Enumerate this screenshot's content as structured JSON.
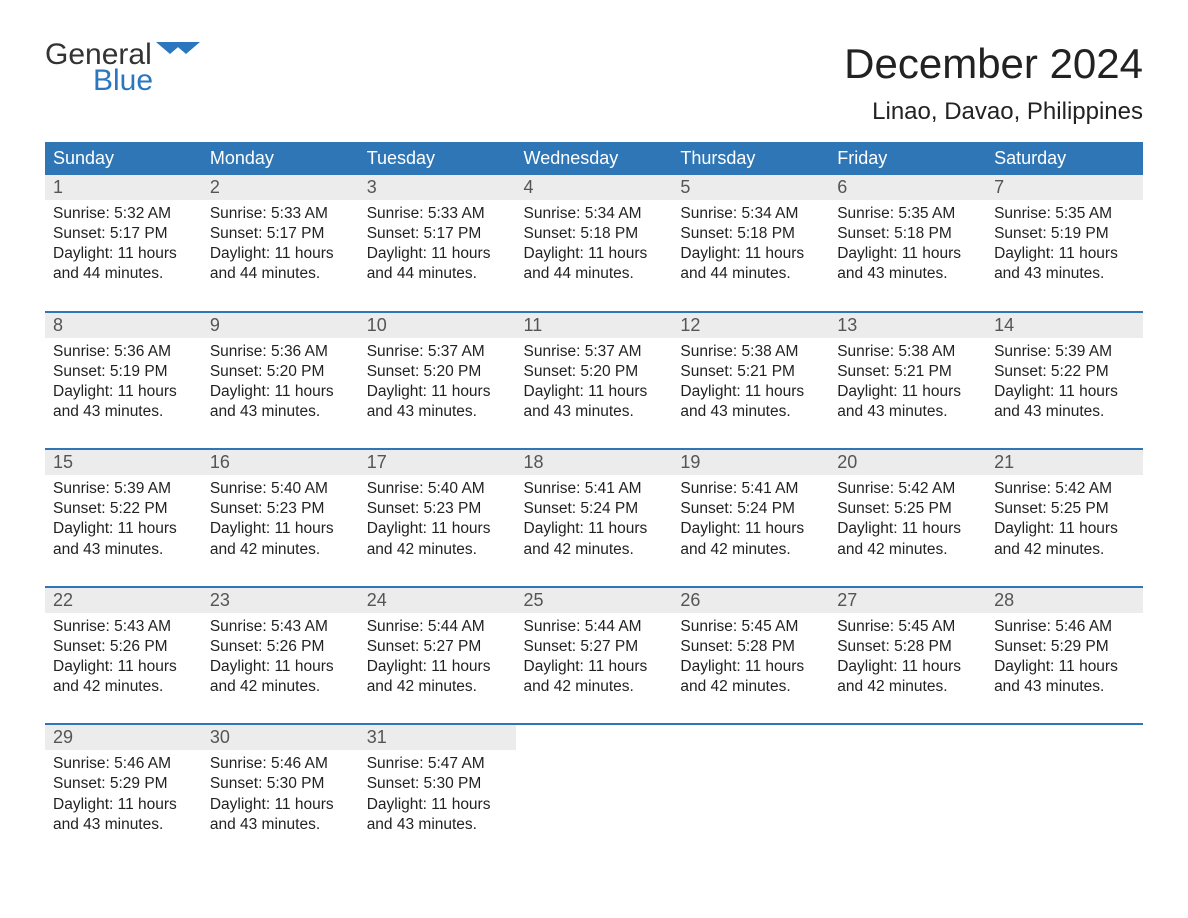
{
  "logo": {
    "word1": "General",
    "word2": "Blue",
    "flag_color": "#2a77bf"
  },
  "title": "December 2024",
  "location": "Linao, Davao, Philippines",
  "colors": {
    "header_bg": "#2f76b6",
    "header_text": "#ffffff",
    "row_border": "#2f76b6",
    "daynum_bg": "#ececec",
    "daynum_text": "#555555",
    "body_text": "#222222",
    "page_bg": "#ffffff"
  },
  "typography": {
    "title_fontsize": 42,
    "location_fontsize": 24,
    "header_fontsize": 18,
    "daynum_fontsize": 18,
    "cell_fontsize": 15.5
  },
  "layout": {
    "columns": 7,
    "rows": 5
  },
  "weekdays": [
    "Sunday",
    "Monday",
    "Tuesday",
    "Wednesday",
    "Thursday",
    "Friday",
    "Saturday"
  ],
  "days": [
    {
      "n": 1,
      "sunrise": "5:32 AM",
      "sunset": "5:17 PM",
      "daylight": "11 hours and 44 minutes."
    },
    {
      "n": 2,
      "sunrise": "5:33 AM",
      "sunset": "5:17 PM",
      "daylight": "11 hours and 44 minutes."
    },
    {
      "n": 3,
      "sunrise": "5:33 AM",
      "sunset": "5:17 PM",
      "daylight": "11 hours and 44 minutes."
    },
    {
      "n": 4,
      "sunrise": "5:34 AM",
      "sunset": "5:18 PM",
      "daylight": "11 hours and 44 minutes."
    },
    {
      "n": 5,
      "sunrise": "5:34 AM",
      "sunset": "5:18 PM",
      "daylight": "11 hours and 44 minutes."
    },
    {
      "n": 6,
      "sunrise": "5:35 AM",
      "sunset": "5:18 PM",
      "daylight": "11 hours and 43 minutes."
    },
    {
      "n": 7,
      "sunrise": "5:35 AM",
      "sunset": "5:19 PM",
      "daylight": "11 hours and 43 minutes."
    },
    {
      "n": 8,
      "sunrise": "5:36 AM",
      "sunset": "5:19 PM",
      "daylight": "11 hours and 43 minutes."
    },
    {
      "n": 9,
      "sunrise": "5:36 AM",
      "sunset": "5:20 PM",
      "daylight": "11 hours and 43 minutes."
    },
    {
      "n": 10,
      "sunrise": "5:37 AM",
      "sunset": "5:20 PM",
      "daylight": "11 hours and 43 minutes."
    },
    {
      "n": 11,
      "sunrise": "5:37 AM",
      "sunset": "5:20 PM",
      "daylight": "11 hours and 43 minutes."
    },
    {
      "n": 12,
      "sunrise": "5:38 AM",
      "sunset": "5:21 PM",
      "daylight": "11 hours and 43 minutes."
    },
    {
      "n": 13,
      "sunrise": "5:38 AM",
      "sunset": "5:21 PM",
      "daylight": "11 hours and 43 minutes."
    },
    {
      "n": 14,
      "sunrise": "5:39 AM",
      "sunset": "5:22 PM",
      "daylight": "11 hours and 43 minutes."
    },
    {
      "n": 15,
      "sunrise": "5:39 AM",
      "sunset": "5:22 PM",
      "daylight": "11 hours and 43 minutes."
    },
    {
      "n": 16,
      "sunrise": "5:40 AM",
      "sunset": "5:23 PM",
      "daylight": "11 hours and 42 minutes."
    },
    {
      "n": 17,
      "sunrise": "5:40 AM",
      "sunset": "5:23 PM",
      "daylight": "11 hours and 42 minutes."
    },
    {
      "n": 18,
      "sunrise": "5:41 AM",
      "sunset": "5:24 PM",
      "daylight": "11 hours and 42 minutes."
    },
    {
      "n": 19,
      "sunrise": "5:41 AM",
      "sunset": "5:24 PM",
      "daylight": "11 hours and 42 minutes."
    },
    {
      "n": 20,
      "sunrise": "5:42 AM",
      "sunset": "5:25 PM",
      "daylight": "11 hours and 42 minutes."
    },
    {
      "n": 21,
      "sunrise": "5:42 AM",
      "sunset": "5:25 PM",
      "daylight": "11 hours and 42 minutes."
    },
    {
      "n": 22,
      "sunrise": "5:43 AM",
      "sunset": "5:26 PM",
      "daylight": "11 hours and 42 minutes."
    },
    {
      "n": 23,
      "sunrise": "5:43 AM",
      "sunset": "5:26 PM",
      "daylight": "11 hours and 42 minutes."
    },
    {
      "n": 24,
      "sunrise": "5:44 AM",
      "sunset": "5:27 PM",
      "daylight": "11 hours and 42 minutes."
    },
    {
      "n": 25,
      "sunrise": "5:44 AM",
      "sunset": "5:27 PM",
      "daylight": "11 hours and 42 minutes."
    },
    {
      "n": 26,
      "sunrise": "5:45 AM",
      "sunset": "5:28 PM",
      "daylight": "11 hours and 42 minutes."
    },
    {
      "n": 27,
      "sunrise": "5:45 AM",
      "sunset": "5:28 PM",
      "daylight": "11 hours and 42 minutes."
    },
    {
      "n": 28,
      "sunrise": "5:46 AM",
      "sunset": "5:29 PM",
      "daylight": "11 hours and 43 minutes."
    },
    {
      "n": 29,
      "sunrise": "5:46 AM",
      "sunset": "5:29 PM",
      "daylight": "11 hours and 43 minutes."
    },
    {
      "n": 30,
      "sunrise": "5:46 AM",
      "sunset": "5:30 PM",
      "daylight": "11 hours and 43 minutes."
    },
    {
      "n": 31,
      "sunrise": "5:47 AM",
      "sunset": "5:30 PM",
      "daylight": "11 hours and 43 minutes."
    }
  ],
  "labels": {
    "sunrise": "Sunrise:",
    "sunset": "Sunset:",
    "daylight": "Daylight:"
  }
}
